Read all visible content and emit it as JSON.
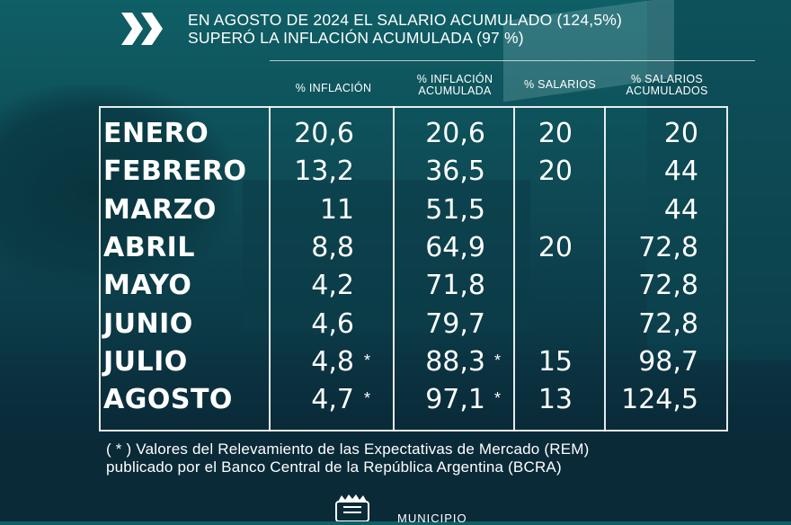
{
  "header": {
    "title_line1": "EN AGOSTO DE 2024 EL SALARIO ACUMULADO (124,5%)",
    "title_line2": "SUPERÓ LA INFLACIÓN ACUMULADA (97 %)"
  },
  "columns": {
    "inflacion": "% INFLACIÓN",
    "inflacion_acum_1": "% INFLACIÓN",
    "inflacion_acum_2": "ACUMULADA",
    "salarios": "% SALARIOS",
    "salarios_acum_1": "% SALARIOS",
    "salarios_acum_2": "ACUMULADOS"
  },
  "rows": [
    {
      "month": "ENERO",
      "inflacion": "20,6",
      "inflacion_ast": "",
      "acumulada": "20,6",
      "acumulada_ast": "",
      "salarios": "20",
      "salarios_acum": "20"
    },
    {
      "month": "FEBRERO",
      "inflacion": "13,2",
      "inflacion_ast": "",
      "acumulada": "36,5",
      "acumulada_ast": "",
      "salarios": "20",
      "salarios_acum": "44"
    },
    {
      "month": "MARZO",
      "inflacion": "11",
      "inflacion_ast": "",
      "acumulada": "51,5",
      "acumulada_ast": "",
      "salarios": "",
      "salarios_acum": "44"
    },
    {
      "month": "ABRIL",
      "inflacion": "8,8",
      "inflacion_ast": "",
      "acumulada": "64,9",
      "acumulada_ast": "",
      "salarios": "20",
      "salarios_acum": "72,8"
    },
    {
      "month": "MAYO",
      "inflacion": "4,2",
      "inflacion_ast": "",
      "acumulada": "71,8",
      "acumulada_ast": "",
      "salarios": "",
      "salarios_acum": "72,8"
    },
    {
      "month": "JUNIO",
      "inflacion": "4,6",
      "inflacion_ast": "",
      "acumulada": "79,7",
      "acumulada_ast": "",
      "salarios": "",
      "salarios_acum": "72,8"
    },
    {
      "month": "JULIO",
      "inflacion": "4,8",
      "inflacion_ast": "*",
      "acumulada": "88,3",
      "acumulada_ast": "*",
      "salarios": "15",
      "salarios_acum": "98,7"
    },
    {
      "month": "AGOSTO",
      "inflacion": "4,7",
      "inflacion_ast": "*",
      "acumulada": "97,1",
      "acumulada_ast": "*",
      "salarios": "13",
      "salarios_acum": "124,5"
    }
  ],
  "footnote": {
    "line1": "( * ) Valores del Relevamiento  de las Expectativas de Mercado (REM)",
    "line2": "publicado por el Banco Central  de la República Argentina (BCRA)"
  },
  "footer": {
    "municipio": "MUNICIPIO"
  },
  "icons": {
    "header_arrow": "double-chevron-right-icon",
    "logo": "municipal-crest-icon"
  },
  "colors": {
    "background": "#0e4b55",
    "text": "#ffffff"
  }
}
